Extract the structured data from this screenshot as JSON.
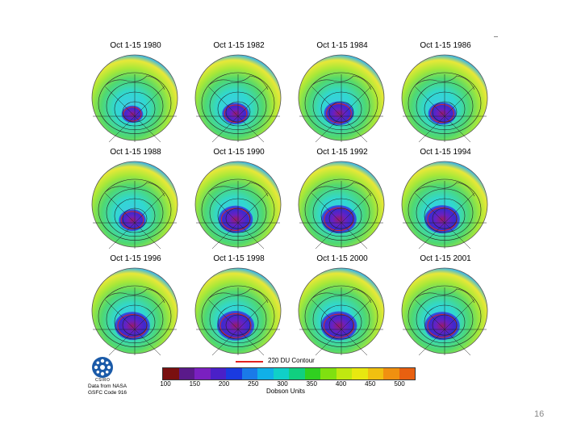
{
  "panels": [
    {
      "title": "Oct 1-15 1980",
      "hole": 0.1
    },
    {
      "title": "Oct 1-15 1982",
      "hole": 0.22
    },
    {
      "title": "Oct 1-15 1984",
      "hole": 0.28
    },
    {
      "title": "Oct 1-15 1986",
      "hole": 0.24
    },
    {
      "title": "Oct 1-15 1988",
      "hole": 0.22
    },
    {
      "title": "Oct 1-15 1990",
      "hole": 0.38
    },
    {
      "title": "Oct 1-15 1992",
      "hole": 0.4
    },
    {
      "title": "Oct 1-15 1994",
      "hole": 0.4
    },
    {
      "title": "Oct 1-15 1996",
      "hole": 0.4
    },
    {
      "title": "Oct 1-15 1998",
      "hole": 0.44
    },
    {
      "title": "Oct 1-15 2000",
      "hole": 0.42
    },
    {
      "title": "Oct 1-15 2001",
      "hole": 0.4
    }
  ],
  "legend": {
    "contour_label": "220 DU Contour",
    "contour_color": "#e02020",
    "units_label": "Dobson Units",
    "ticks": [
      "100",
      "150",
      "200",
      "250",
      "300",
      "350",
      "400",
      "450",
      "500"
    ],
    "colors": [
      "#7a1010",
      "#5a1a8a",
      "#7a20c0",
      "#4a20c8",
      "#1a3ae0",
      "#1a7ae8",
      "#10b0e8",
      "#10d0c8",
      "#10d080",
      "#30d020",
      "#80e010",
      "#c0e810",
      "#e8e810",
      "#f0c010",
      "#f09010",
      "#e86010"
    ]
  },
  "credit": {
    "org": "CSIRO",
    "line1": "Data from NASA",
    "line2": "GSFC Code 916"
  },
  "slide_number": "16"
}
